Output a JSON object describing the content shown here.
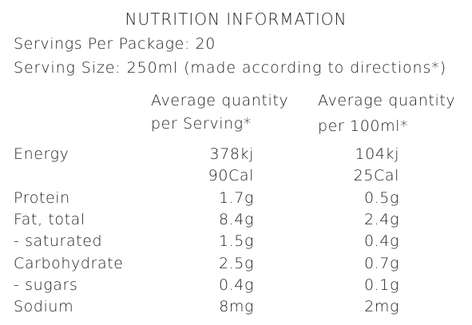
{
  "header": {
    "title": "NUTRITION INFORMATION",
    "servings": "Servings Per Package: 20",
    "serving_size": "Serving Size: 250ml (made according to directions*)"
  },
  "table": {
    "columns": [
      [
        "Average quantity",
        "per Serving*"
      ],
      [
        "Average quantity",
        "per 100ml*"
      ]
    ],
    "rows": [
      {
        "label": "Energy",
        "cells": [
          [
            "378kj",
            "90Cal"
          ],
          [
            "104kj",
            "25Cal"
          ]
        ]
      },
      {
        "label": "Protein",
        "cells": [
          [
            "1.7g"
          ],
          [
            "0.5g"
          ]
        ]
      },
      {
        "label": "Fat, total",
        "cells": [
          [
            "8.4g"
          ],
          [
            "2.4g"
          ]
        ]
      },
      {
        "label": "- saturated",
        "cells": [
          [
            "1.5g"
          ],
          [
            "0.4g"
          ]
        ]
      },
      {
        "label": "Carbohydrate",
        "cells": [
          [
            "2.5g"
          ],
          [
            "0.7g"
          ]
        ]
      },
      {
        "label": "- sugars",
        "cells": [
          [
            "0.4g"
          ],
          [
            "0.1g"
          ]
        ]
      },
      {
        "label": "Sodium",
        "cells": [
          [
            "8mg"
          ],
          [
            "2mg"
          ]
        ]
      }
    ]
  }
}
